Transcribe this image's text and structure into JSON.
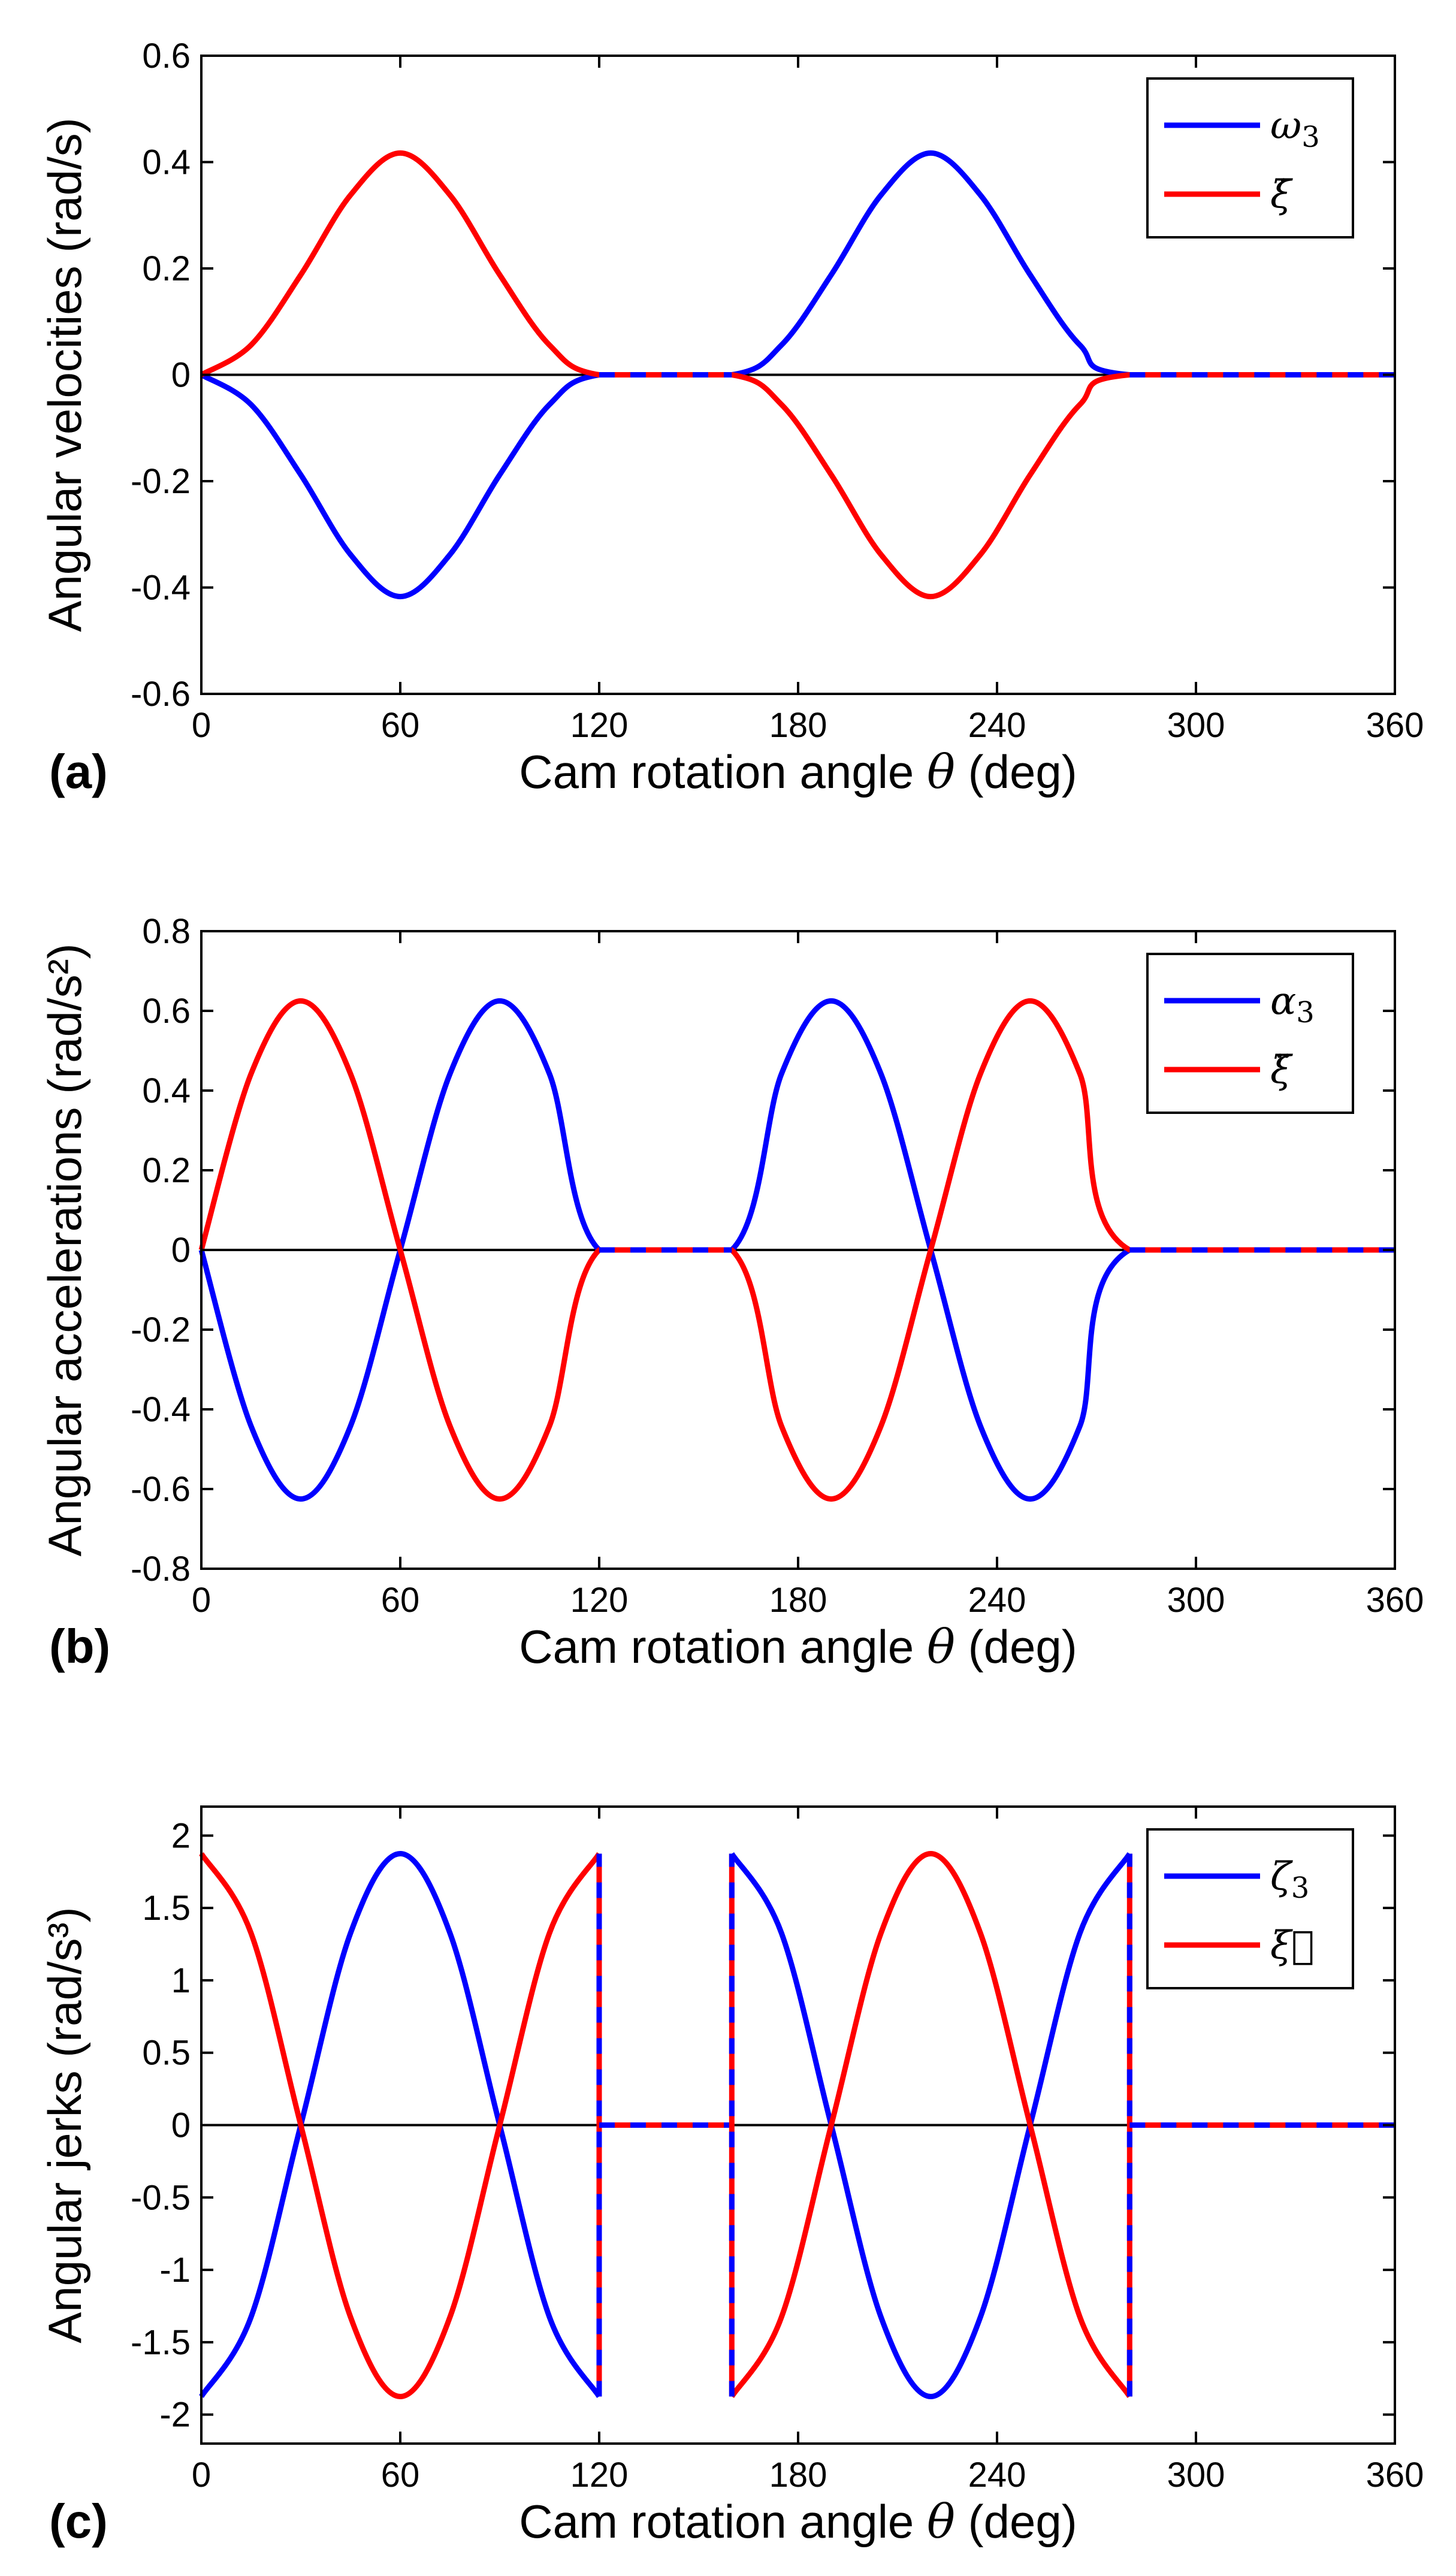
{
  "chart_data": [
    {
      "type": "line",
      "panel_label": "(a)",
      "xlabel_prefix": "Cam rotation angle ",
      "xlabel_symbol": "θ",
      "xlabel_suffix": " (deg)",
      "ylabel": "Angular velocities (rad/s)",
      "xlim": [
        0,
        360
      ],
      "ylim": [
        -0.6,
        0.6
      ],
      "x_ticks": [
        0,
        60,
        120,
        180,
        240,
        300,
        360
      ],
      "y_ticks": [
        -0.6,
        -0.4,
        -0.2,
        0,
        0.2,
        0.4,
        0.6
      ],
      "y_tick_labels": [
        "-0.6",
        "-0.4",
        "-0.2",
        "0",
        "0.2",
        "0.4",
        "0.6"
      ],
      "zero_line": true,
      "legend": [
        {
          "symbol": "ω",
          "subscript": "3",
          "color": "#0000ff"
        },
        {
          "symbol": "ξ̇",
          "subscript": "",
          "color": "#ff0000"
        }
      ],
      "series": [
        {
          "name": "omega3",
          "color": "#0000ff",
          "x": [
            0,
            15,
            30,
            45,
            60,
            75,
            90,
            105,
            120,
            160,
            175,
            190,
            205,
            220,
            235,
            250,
            265,
            280,
            360
          ],
          "y": [
            0,
            -0.056,
            -0.188,
            -0.338,
            -0.417,
            -0.338,
            -0.188,
            -0.056,
            0,
            0,
            0.056,
            0.188,
            0.338,
            0.417,
            0.338,
            0.188,
            0.056,
            0,
            0
          ]
        },
        {
          "name": "xi_dot",
          "color": "#ff0000",
          "x": [
            0,
            15,
            30,
            45,
            60,
            75,
            90,
            105,
            120,
            160,
            175,
            190,
            205,
            220,
            235,
            250,
            265,
            280,
            360
          ],
          "y": [
            0,
            0.056,
            0.188,
            0.338,
            0.417,
            0.338,
            0.188,
            0.056,
            0,
            0,
            -0.056,
            -0.188,
            -0.338,
            -0.417,
            -0.338,
            -0.188,
            -0.056,
            0,
            0
          ]
        }
      ],
      "dashed_overlays": [
        {
          "x": [
            120,
            160
          ],
          "y": [
            0,
            0
          ]
        },
        {
          "x": [
            280,
            360
          ],
          "y": [
            0,
            0
          ]
        }
      ]
    },
    {
      "type": "line",
      "panel_label": "(b)",
      "xlabel_prefix": "Cam rotation angle ",
      "xlabel_symbol": "θ",
      "xlabel_suffix": " (deg)",
      "ylabel": "Angular accelerations (rad/s²)",
      "xlim": [
        0,
        360
      ],
      "ylim": [
        -0.8,
        0.8
      ],
      "x_ticks": [
        0,
        60,
        120,
        180,
        240,
        300,
        360
      ],
      "y_ticks": [
        -0.8,
        -0.6,
        -0.4,
        -0.2,
        0,
        0.2,
        0.4,
        0.6,
        0.8
      ],
      "y_tick_labels": [
        "-0.8",
        "-0.6",
        "-0.4",
        "-0.2",
        "0",
        "0.2",
        "0.4",
        "0.6",
        "0.8"
      ],
      "zero_line": true,
      "legend": [
        {
          "symbol": "α",
          "subscript": "3",
          "color": "#0000ff"
        },
        {
          "symbol": "ξ̈",
          "subscript": "",
          "color": "#ff0000"
        }
      ],
      "series": [
        {
          "name": "alpha3",
          "color": "#0000ff",
          "x": [
            0,
            15,
            30,
            45,
            60,
            75,
            90,
            105,
            120,
            160,
            175,
            190,
            205,
            220,
            235,
            250,
            265,
            280,
            360
          ],
          "y": [
            0,
            -0.442,
            -0.625,
            -0.442,
            0,
            0.442,
            0.625,
            0.442,
            0,
            0,
            0.442,
            0.625,
            0.442,
            0,
            -0.442,
            -0.625,
            -0.442,
            0,
            0
          ]
        },
        {
          "name": "xi_ddot",
          "color": "#ff0000",
          "x": [
            0,
            15,
            30,
            45,
            60,
            75,
            90,
            105,
            120,
            160,
            175,
            190,
            205,
            220,
            235,
            250,
            265,
            280,
            360
          ],
          "y": [
            0,
            0.442,
            0.625,
            0.442,
            0,
            -0.442,
            -0.625,
            -0.442,
            0,
            0,
            -0.442,
            -0.625,
            -0.442,
            0,
            0.442,
            0.625,
            0.442,
            0,
            0
          ]
        }
      ],
      "dashed_overlays": [
        {
          "x": [
            120,
            160
          ],
          "y": [
            0,
            0
          ]
        },
        {
          "x": [
            280,
            360
          ],
          "y": [
            0,
            0
          ]
        }
      ]
    },
    {
      "type": "line",
      "panel_label": "(c)",
      "xlabel_prefix": "Cam rotation angle ",
      "xlabel_symbol": "θ",
      "xlabel_suffix": " (deg)",
      "ylabel": "Angular jerks (rad/s³)",
      "xlim": [
        0,
        360
      ],
      "ylim": [
        -2.2,
        2.2
      ],
      "x_ticks": [
        0,
        60,
        120,
        180,
        240,
        300,
        360
      ],
      "y_ticks": [
        -2,
        -1.5,
        -1,
        -0.5,
        0,
        0.5,
        1,
        1.5,
        2
      ],
      "y_tick_labels": [
        "-2",
        "-1.5",
        "-1",
        "-0.5",
        "0",
        "0.5",
        "1",
        "1.5",
        "2"
      ],
      "zero_line": true,
      "legend": [
        {
          "symbol": "ζ",
          "subscript": "3",
          "color": "#0000ff"
        },
        {
          "symbol": "ξ⃛",
          "subscript": "",
          "color": "#ff0000"
        }
      ],
      "series": [
        {
          "name": "zeta3_a",
          "color": "#0000ff",
          "x": [
            0,
            15,
            30,
            45,
            60,
            75,
            90,
            105,
            120
          ],
          "y": [
            -1.875,
            -1.326,
            0,
            1.326,
            1.875,
            1.326,
            0,
            -1.326,
            -1.875
          ]
        },
        {
          "name": "zeta3_b",
          "color": "#0000ff",
          "x": [
            160,
            175,
            190,
            205,
            220,
            235,
            250,
            265,
            280
          ],
          "y": [
            1.875,
            1.326,
            0,
            -1.326,
            -1.875,
            -1.326,
            0,
            1.326,
            1.875
          ]
        },
        {
          "name": "xi_dddot_a",
          "color": "#ff0000",
          "x": [
            0,
            15,
            30,
            45,
            60,
            75,
            90,
            105,
            120
          ],
          "y": [
            1.875,
            1.326,
            0,
            -1.326,
            -1.875,
            -1.326,
            0,
            1.326,
            1.875
          ]
        },
        {
          "name": "xi_dddot_b",
          "color": "#ff0000",
          "x": [
            160,
            175,
            190,
            205,
            220,
            235,
            250,
            265,
            280
          ],
          "y": [
            -1.875,
            -1.326,
            0,
            1.326,
            1.875,
            1.326,
            0,
            -1.326,
            -1.875
          ]
        }
      ],
      "dashed_overlays": [
        {
          "x": [
            120,
            120
          ],
          "y": [
            -1.875,
            1.875
          ]
        },
        {
          "x": [
            120,
            160
          ],
          "y": [
            0,
            0
          ]
        },
        {
          "x": [
            160,
            160
          ],
          "y": [
            -1.875,
            1.875
          ]
        },
        {
          "x": [
            280,
            280
          ],
          "y": [
            -1.875,
            1.875
          ]
        },
        {
          "x": [
            280,
            360
          ],
          "y": [
            0,
            0
          ]
        }
      ]
    }
  ]
}
